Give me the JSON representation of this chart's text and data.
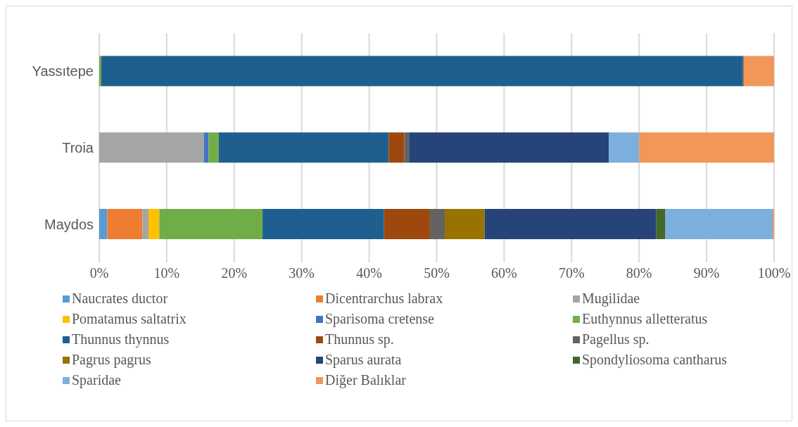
{
  "chart_data": {
    "type": "bar",
    "orientation": "horizontal",
    "stacked": true,
    "categories": [
      "Yassıtepe",
      "Troia",
      "Maydos"
    ],
    "series": [
      {
        "name": "Naucrates ductor",
        "color": "#5b9bd5",
        "values": [
          0,
          0,
          1.2
        ]
      },
      {
        "name": "Dicentrarchus labrax",
        "color": "#ed7d31",
        "values": [
          0,
          0,
          5.2
        ]
      },
      {
        "name": "Mugilidae",
        "color": "#a5a5a5",
        "values": [
          0,
          15.5,
          0.9
        ]
      },
      {
        "name": "Pomatamus saltatrix",
        "color": "#ffc000",
        "values": [
          0,
          0,
          1.6
        ]
      },
      {
        "name": "Sparisoma cretense",
        "color": "#4472c4",
        "values": [
          0,
          0.7,
          0
        ]
      },
      {
        "name": "Euthynnus alletteratus",
        "color": "#70ad47",
        "values": [
          0.3,
          1.5,
          15.3
        ]
      },
      {
        "name": "Thunnus thynnus",
        "color": "#1f5f8f",
        "values": [
          95.0,
          25.2,
          18.0
        ]
      },
      {
        "name": "Thunnus sp.",
        "color": "#9e480e",
        "values": [
          0,
          2.3,
          6.8
        ]
      },
      {
        "name": "Pagellus sp.",
        "color": "#636363",
        "values": [
          0.2,
          0.7,
          2.2
        ]
      },
      {
        "name": "Pagrus pagrus",
        "color": "#997300",
        "values": [
          0,
          0,
          5.9
        ]
      },
      {
        "name": "Sparus aurata",
        "color": "#264478",
        "values": [
          0,
          29.6,
          25.4
        ]
      },
      {
        "name": "Spondyliosoma cantharus",
        "color": "#43682b",
        "values": [
          0,
          0,
          1.4
        ]
      },
      {
        "name": "Sparidae",
        "color": "#7cafdd",
        "values": [
          0,
          4.5,
          15.9
        ]
      },
      {
        "name": "Diğer Balıklar",
        "color": "#f1975a",
        "values": [
          4.5,
          20.0,
          0.2
        ]
      }
    ],
    "xlim": [
      0,
      100
    ],
    "xticks": [
      {
        "value": 0,
        "label": "0%"
      },
      {
        "value": 10,
        "label": "10%"
      },
      {
        "value": 20,
        "label": "20%"
      },
      {
        "value": 30,
        "label": "30%"
      },
      {
        "value": 40,
        "label": "40%"
      },
      {
        "value": 50,
        "label": "50%"
      },
      {
        "value": 60,
        "label": "60%"
      },
      {
        "value": 70,
        "label": "70%"
      },
      {
        "value": 80,
        "label": "80%"
      },
      {
        "value": 90,
        "label": "90%"
      },
      {
        "value": 100,
        "label": "100%"
      }
    ],
    "grid": "x",
    "legend": "bottom"
  }
}
